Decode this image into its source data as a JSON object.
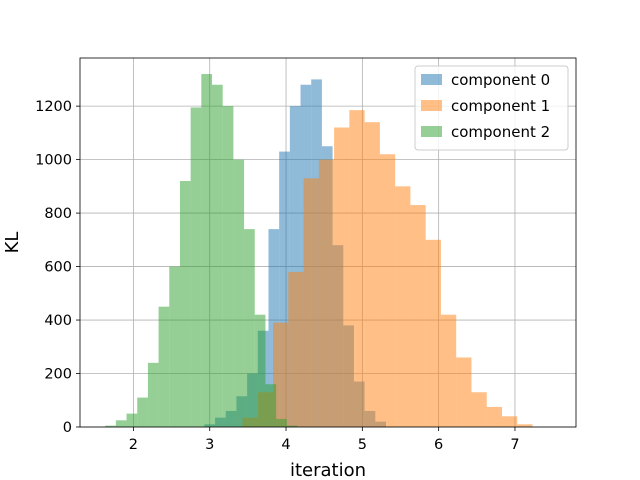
{
  "chart_data": {
    "type": "bar",
    "subtype": "overlapping-histogram",
    "xlabel": "iteration",
    "ylabel": "KL",
    "xlim": [
      1.3,
      7.8
    ],
    "ylim": [
      0,
      1380
    ],
    "x_ticks": [
      2,
      3,
      4,
      5,
      6,
      7
    ],
    "y_ticks": [
      0,
      200,
      400,
      600,
      800,
      1000,
      1200
    ],
    "grid": true,
    "legend_position": "top-right",
    "bar_opacity": 0.5,
    "series": [
      {
        "name": "component 0",
        "color": "#1f77b4",
        "bins": [
          [
            2.93,
            3.07,
            10
          ],
          [
            3.07,
            3.21,
            35
          ],
          [
            3.21,
            3.35,
            60
          ],
          [
            3.35,
            3.49,
            115
          ],
          [
            3.49,
            3.63,
            200
          ],
          [
            3.63,
            3.77,
            360
          ],
          [
            3.77,
            3.91,
            740
          ],
          [
            3.91,
            4.05,
            1030
          ],
          [
            4.05,
            4.19,
            1200
          ],
          [
            4.19,
            4.33,
            1280
          ],
          [
            4.33,
            4.47,
            1300
          ],
          [
            4.47,
            4.61,
            1050
          ],
          [
            4.61,
            4.75,
            680
          ],
          [
            4.75,
            4.89,
            380
          ],
          [
            4.89,
            5.03,
            170
          ],
          [
            5.03,
            5.17,
            60
          ],
          [
            5.17,
            5.31,
            20
          ]
        ]
      },
      {
        "name": "component 1",
        "color": "#ff7f0e",
        "bins": [
          [
            3.43,
            3.63,
            35
          ],
          [
            3.63,
            3.83,
            130
          ],
          [
            3.83,
            4.03,
            390
          ],
          [
            4.03,
            4.23,
            580
          ],
          [
            4.23,
            4.43,
            930
          ],
          [
            4.43,
            4.63,
            1000
          ],
          [
            4.63,
            4.83,
            1120
          ],
          [
            4.83,
            5.03,
            1185
          ],
          [
            5.03,
            5.23,
            1140
          ],
          [
            5.23,
            5.43,
            1020
          ],
          [
            5.43,
            5.63,
            900
          ],
          [
            5.63,
            5.83,
            830
          ],
          [
            5.83,
            6.03,
            700
          ],
          [
            6.03,
            6.23,
            420
          ],
          [
            6.23,
            6.43,
            260
          ],
          [
            6.43,
            6.63,
            130
          ],
          [
            6.63,
            6.83,
            75
          ],
          [
            6.83,
            7.03,
            40
          ],
          [
            7.03,
            7.23,
            10
          ]
        ]
      },
      {
        "name": "component 2",
        "color": "#2ca02c",
        "bins": [
          [
            1.63,
            1.77,
            5
          ],
          [
            1.77,
            1.91,
            25
          ],
          [
            1.91,
            2.05,
            50
          ],
          [
            2.05,
            2.19,
            110
          ],
          [
            2.19,
            2.33,
            240
          ],
          [
            2.33,
            2.47,
            450
          ],
          [
            2.47,
            2.61,
            600
          ],
          [
            2.61,
            2.75,
            920
          ],
          [
            2.75,
            2.89,
            1195
          ],
          [
            2.89,
            3.03,
            1320
          ],
          [
            3.03,
            3.17,
            1280
          ],
          [
            3.17,
            3.31,
            1200
          ],
          [
            3.31,
            3.45,
            1000
          ],
          [
            3.45,
            3.59,
            740
          ],
          [
            3.59,
            3.73,
            420
          ],
          [
            3.73,
            3.87,
            160
          ],
          [
            3.87,
            4.01,
            30
          ],
          [
            4.01,
            4.15,
            5
          ]
        ]
      }
    ]
  }
}
